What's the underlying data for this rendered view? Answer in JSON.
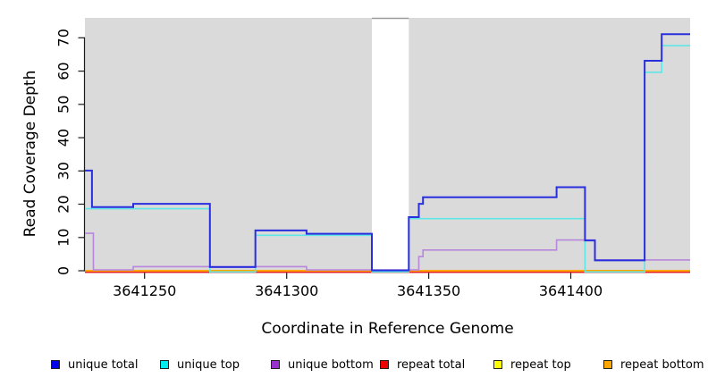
{
  "figure": {
    "x_axis_title": "Coordinate in Reference Genome",
    "y_axis_title": "Read Coverage Depth"
  },
  "chart_data": {
    "type": "step",
    "xlabel": "Coordinate in Reference Genome",
    "ylabel": "Read Coverage Depth",
    "xlim": [
      3641229,
      3641442
    ],
    "ylim": [
      0,
      76
    ],
    "xticks": [
      3641250,
      3641300,
      3641350,
      3641400
    ],
    "yticks": [
      0,
      10,
      20,
      30,
      40,
      50,
      60,
      70
    ],
    "grid": "off",
    "shade_color": "#dadada",
    "gap_border_color": "#999999",
    "axis_color": "#1a1a1a",
    "shaded_regions": [
      [
        3641229,
        3641330
      ],
      [
        3641343,
        3641442
      ]
    ],
    "unshaded_gap": [
      3641330,
      3641343
    ],
    "series": [
      {
        "name": "repeat total",
        "color": "#e32222",
        "width": 2,
        "render_offset": 1.5,
        "points": [
          [
            3641229,
            0
          ]
        ]
      },
      {
        "name": "repeat top",
        "color": "#ffff00",
        "width": 2,
        "render_offset": 0,
        "points": [
          [
            3641229,
            0
          ]
        ]
      },
      {
        "name": "repeat bottom",
        "color": "#ffa500",
        "width": 2,
        "render_offset": 0,
        "points": [
          [
            3641229,
            0
          ]
        ]
      },
      {
        "name": "unique top",
        "color": "#5fe6e6",
        "width": 1.6,
        "render_offset": 1.3,
        "points": [
          [
            3641229,
            19
          ],
          [
            3641273,
            0
          ],
          [
            3641289,
            11
          ],
          [
            3641330,
            0
          ],
          [
            3641343,
            16
          ],
          [
            3641405,
            0
          ],
          [
            3641426,
            60
          ],
          [
            3641432,
            68
          ]
        ]
      },
      {
        "name": "unique bottom",
        "color": "#b787dc",
        "width": 1.6,
        "render_offset": -0.9,
        "points": [
          [
            3641229,
            11
          ],
          [
            3641232,
            0
          ],
          [
            3641246,
            1
          ],
          [
            3641307,
            0
          ],
          [
            3641346.5,
            4
          ],
          [
            3641348,
            6
          ],
          [
            3641395,
            9
          ],
          [
            3641408.5,
            3
          ]
        ]
      },
      {
        "name": "unique total",
        "color": "#2a2fdd",
        "width": 2,
        "render_offset": -0.4,
        "points": [
          [
            3641229,
            30
          ],
          [
            3641231.5,
            19
          ],
          [
            3641246,
            20
          ],
          [
            3641273,
            1
          ],
          [
            3641289,
            12
          ],
          [
            3641307,
            11
          ],
          [
            3641330,
            0
          ],
          [
            3641343,
            16
          ],
          [
            3641346.5,
            20
          ],
          [
            3641348,
            22
          ],
          [
            3641395,
            25
          ],
          [
            3641405,
            9
          ],
          [
            3641408.5,
            3
          ],
          [
            3641426,
            63
          ],
          [
            3641432,
            71
          ]
        ]
      }
    ],
    "legend": [
      {
        "label": "unique total",
        "color": "#0000e6"
      },
      {
        "label": "unique top",
        "color": "#00eeee"
      },
      {
        "label": "unique bottom",
        "color": "#9932cc"
      },
      {
        "label": "repeat total",
        "color": "#ee0000"
      },
      {
        "label": "repeat top",
        "color": "#ffff00"
      },
      {
        "label": "repeat bottom",
        "color": "#ffa500"
      }
    ]
  }
}
